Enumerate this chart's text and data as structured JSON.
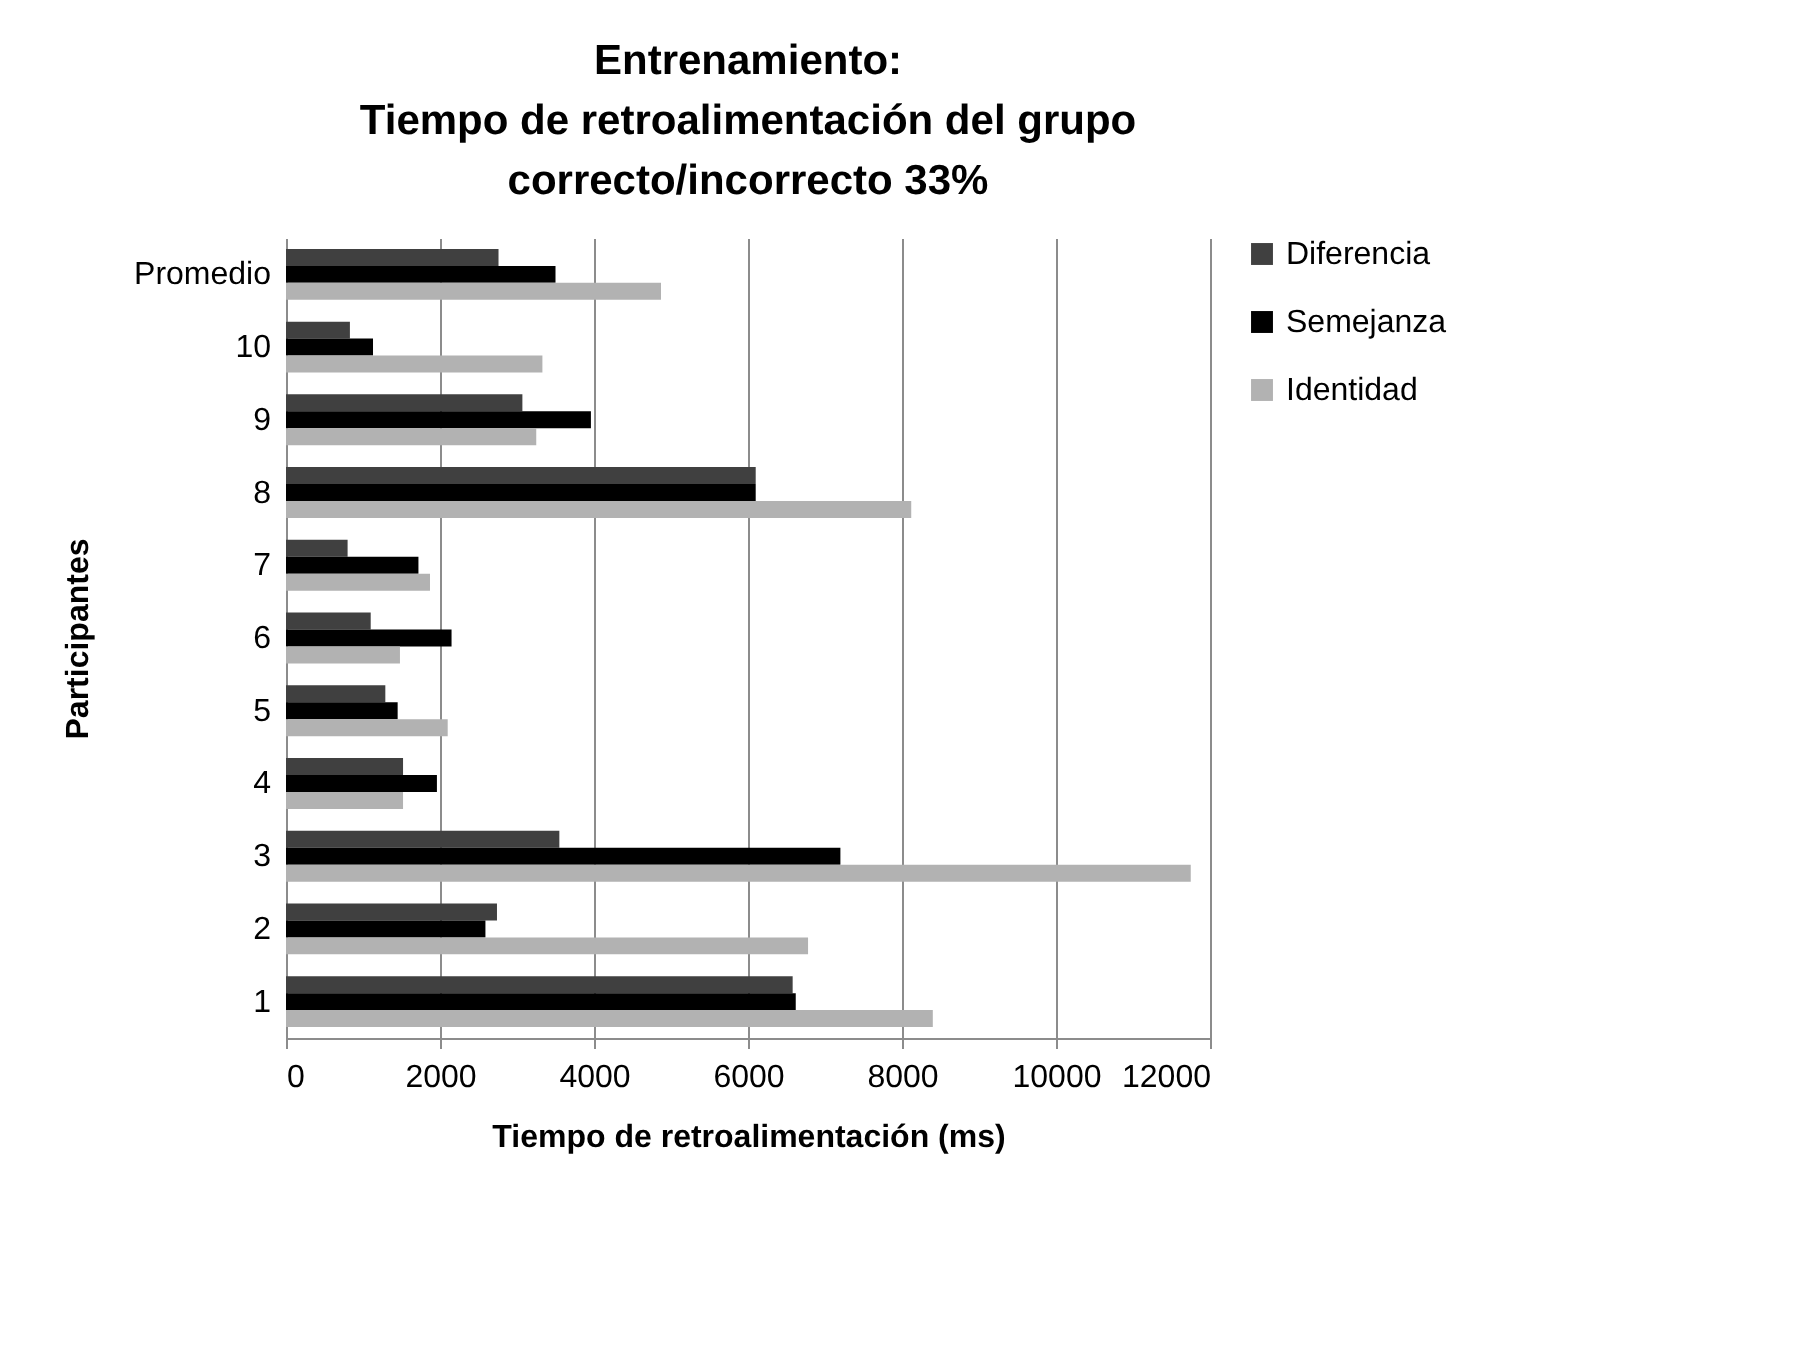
{
  "chart_data": {
    "type": "bar",
    "orientation": "horizontal",
    "title": "Entrenamiento:\nTiempo de retroalimentación del grupo\ncorrecto/incorrecto 33%",
    "xlabel": "Tiempo de retroalimentación (ms)",
    "ylabel": "Participantes",
    "categories": [
      "Promedio",
      "10",
      "9",
      "8",
      "7",
      "6",
      "5",
      "4",
      "3",
      "2",
      "1"
    ],
    "series": [
      {
        "name": "Diferencia",
        "color": "#404040",
        "values": [
          2760,
          830,
          3070,
          6100,
          800,
          1100,
          1290,
          1520,
          3550,
          2740,
          6580
        ]
      },
      {
        "name": "Semejanza",
        "color": "#000000",
        "values": [
          3500,
          1130,
          3960,
          6100,
          1720,
          2150,
          1450,
          1960,
          7200,
          2590,
          6620
        ]
      },
      {
        "name": "Identidad",
        "color": "#b2b2b2",
        "values": [
          4870,
          3330,
          3250,
          8120,
          1870,
          1480,
          2100,
          1520,
          11750,
          6780,
          8400
        ]
      }
    ],
    "xlim": [
      0,
      12000
    ],
    "xticks": [
      0,
      2000,
      4000,
      6000,
      8000,
      10000,
      12000
    ],
    "grid": "x",
    "legend": "right"
  }
}
